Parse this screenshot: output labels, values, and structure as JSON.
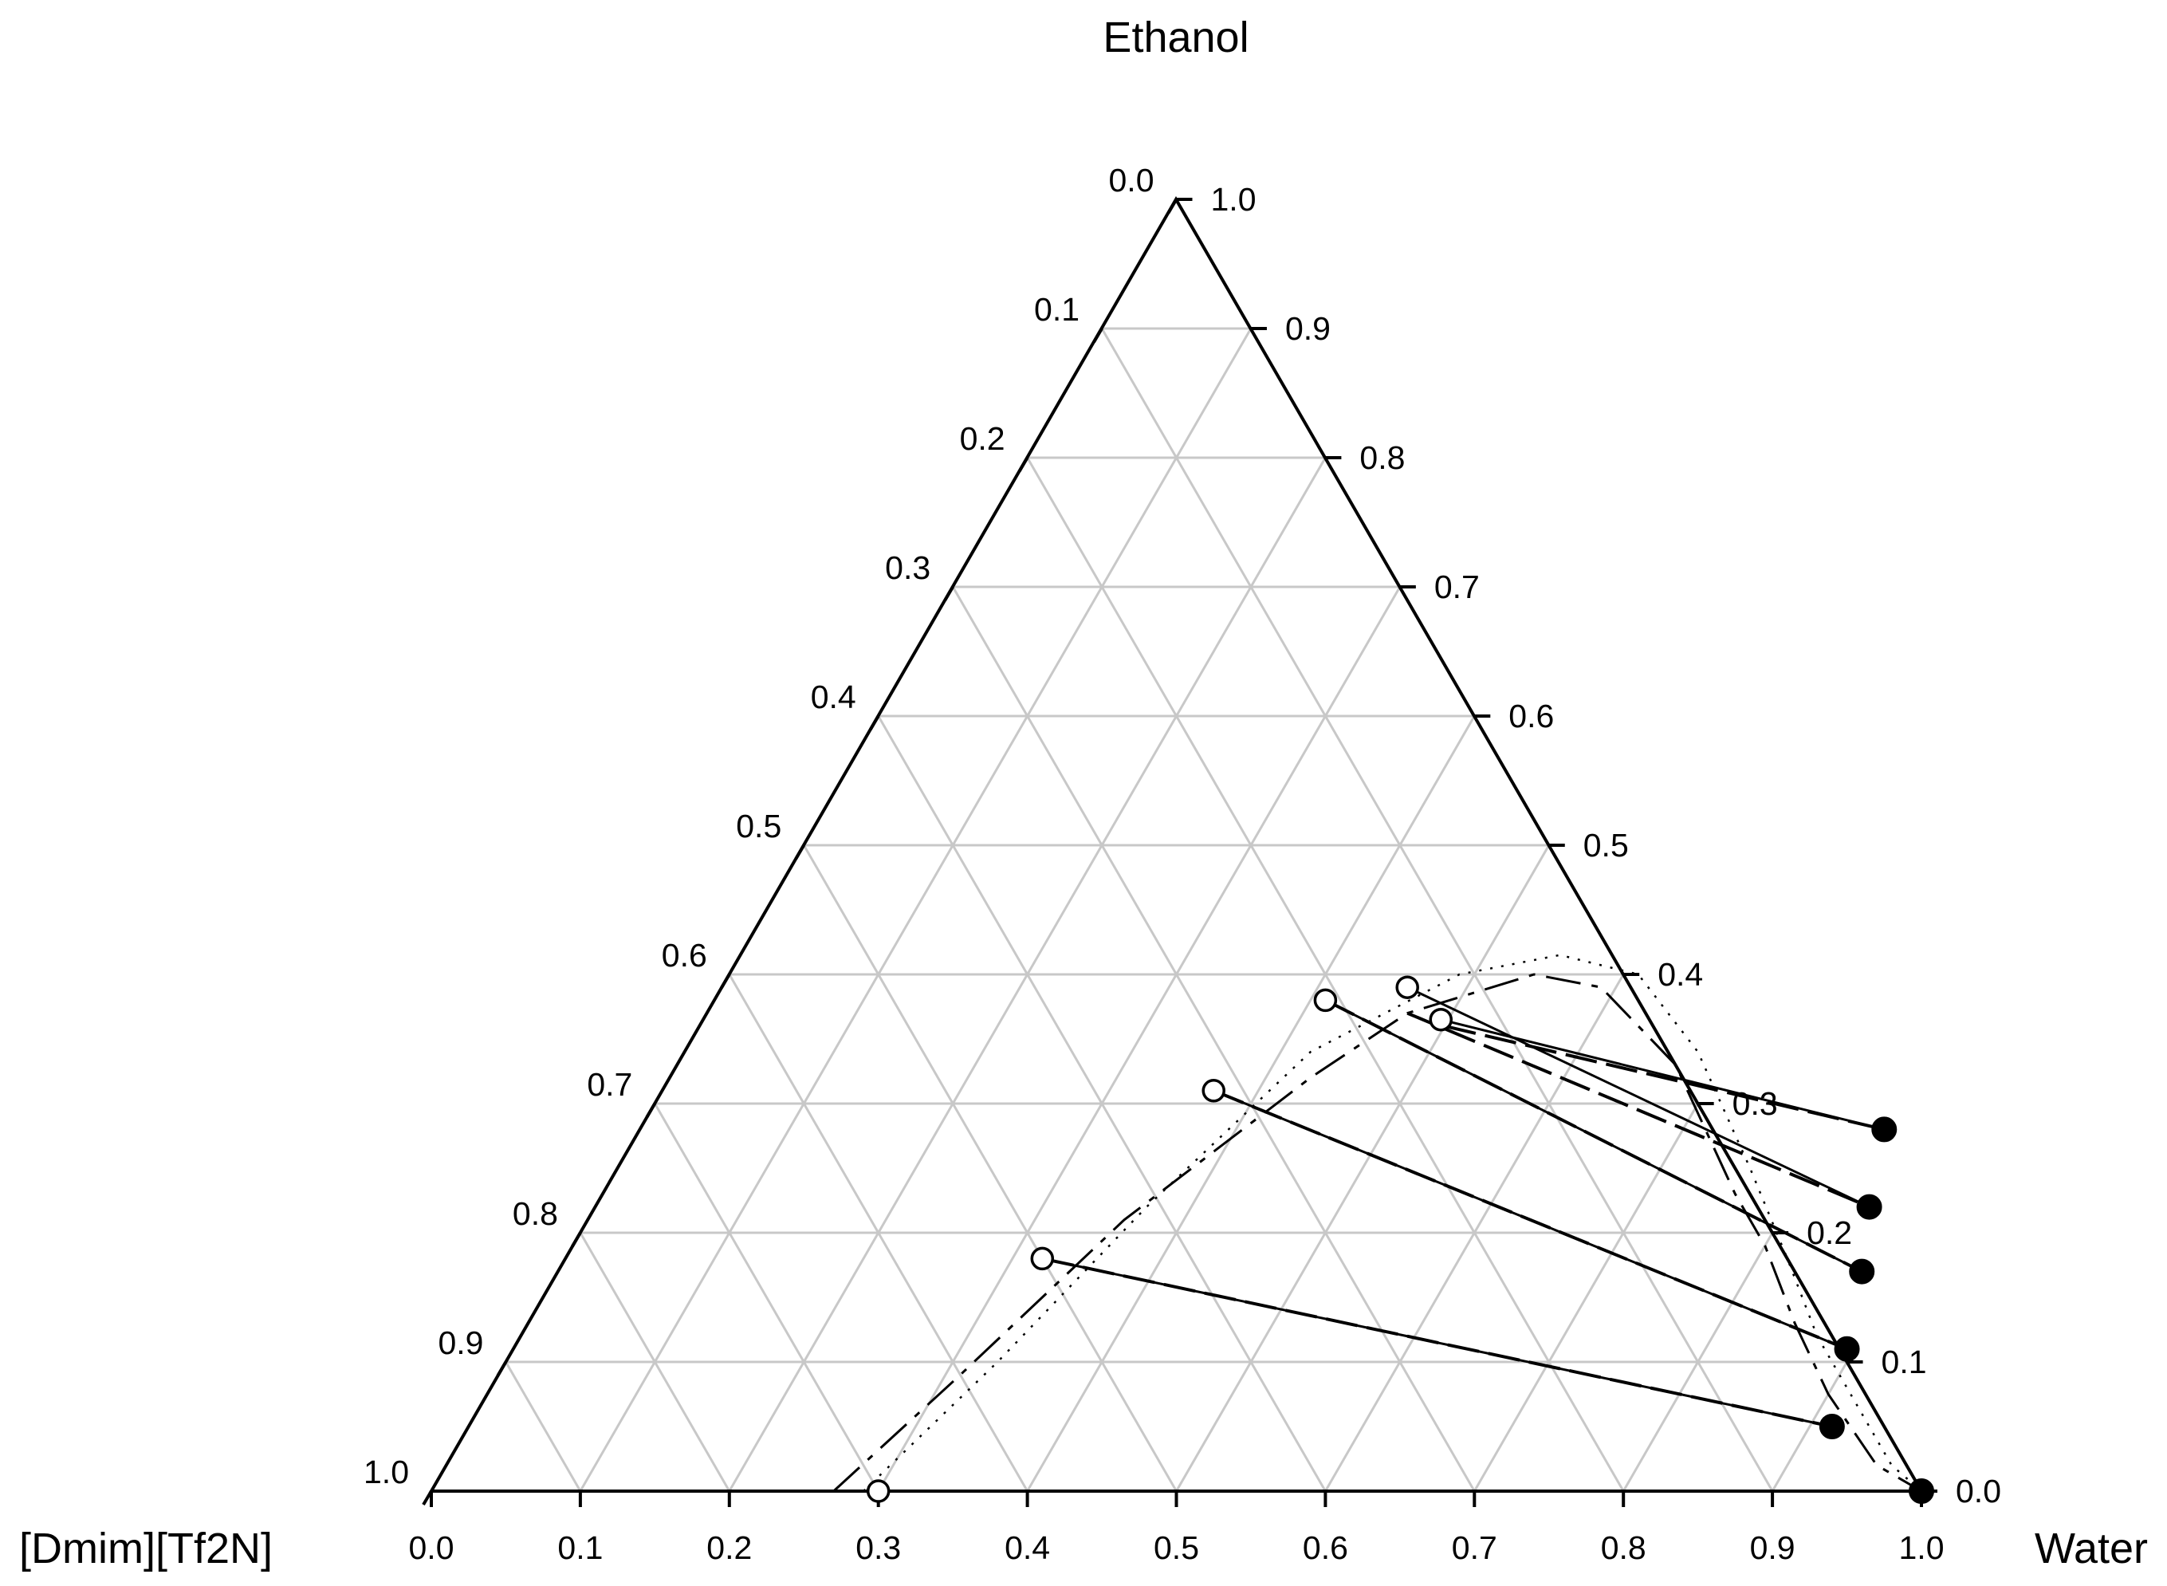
{
  "chart_data": {
    "type": "scatter",
    "subtype": "ternary",
    "vertex_labels": {
      "top": "Ethanol",
      "bottom_left": "[Dmim][Tf2N]",
      "bottom_right": "Water"
    },
    "ticks": {
      "bottom": [
        "0.0",
        "0.1",
        "0.2",
        "0.3",
        "0.4",
        "0.5",
        "0.6",
        "0.7",
        "0.8",
        "0.9",
        "1.0"
      ],
      "left": [
        "0.0",
        "0.1",
        "0.2",
        "0.3",
        "0.4",
        "0.5",
        "0.6",
        "0.7",
        "0.8",
        "0.9",
        "1.0"
      ],
      "right": [
        "1.0",
        "0.9",
        "0.8",
        "0.7",
        "0.6",
        "0.5",
        "0.4",
        "0.3",
        "0.2",
        "0.1",
        "0.0"
      ]
    },
    "grid": true,
    "tie_lines": [
      {
        "il_rich": {
          "water": 0.3,
          "ethanol": 0.0
        },
        "water_rich": {
          "water": 1.0,
          "ethanol": 0.0
        }
      },
      {
        "il_rich": {
          "water": 0.32,
          "ethanol": 0.18
        },
        "water_rich": {
          "water": 0.915,
          "ethanol": 0.05
        }
      },
      {
        "il_rich": {
          "water": 0.37,
          "ethanol": 0.31
        },
        "water_rich": {
          "water": 0.895,
          "ethanol": 0.11
        }
      },
      {
        "il_rich": {
          "water": 0.41,
          "ethanol": 0.38
        },
        "water_rich": {
          "water": 0.875,
          "ethanol": 0.17
        }
      },
      {
        "il_rich": {
          "water": 0.46,
          "ethanol": 0.39
        },
        "water_rich": {
          "water": 0.855,
          "ethanol": 0.22
        }
      },
      {
        "il_rich": {
          "water": 0.495,
          "ethanol": 0.365
        },
        "water_rich": {
          "water": 0.835,
          "ethanol": 0.28
        }
      }
    ],
    "series": [
      {
        "marker": "open-circle",
        "points": [
          [
            0.3,
            0.0
          ],
          [
            0.32,
            0.18
          ],
          [
            0.37,
            0.31
          ],
          [
            0.41,
            0.38
          ],
          [
            0.46,
            0.39
          ],
          [
            0.495,
            0.365
          ]
        ]
      },
      {
        "marker": "filled-circle",
        "points": [
          [
            1.0,
            0.0
          ],
          [
            0.915,
            0.05
          ],
          [
            0.895,
            0.11
          ],
          [
            0.875,
            0.17
          ],
          [
            0.855,
            0.22
          ],
          [
            0.835,
            0.28
          ]
        ]
      }
    ],
    "model_curves": [
      {
        "style": "dashed",
        "points": [
          [
            0.27,
            0.0
          ],
          [
            0.31,
            0.09
          ],
          [
            0.36,
            0.21
          ],
          [
            0.43,
            0.32
          ],
          [
            0.47,
            0.37
          ],
          [
            0.54,
            0.4
          ],
          [
            0.59,
            0.39
          ],
          [
            0.67,
            0.33
          ],
          [
            0.76,
            0.23
          ],
          [
            0.8,
            0.19
          ],
          [
            0.85,
            0.13
          ],
          [
            0.9,
            0.075
          ],
          [
            0.96,
            0.02
          ],
          [
            1.0,
            0.0
          ]
        ]
      },
      {
        "style": "dotted",
        "points": [
          [
            0.29,
            0.0
          ],
          [
            0.33,
            0.1
          ],
          [
            0.37,
            0.22
          ],
          [
            0.42,
            0.34
          ],
          [
            0.49,
            0.4
          ],
          [
            0.55,
            0.415
          ],
          [
            0.61,
            0.4
          ],
          [
            0.68,
            0.34
          ],
          [
            0.76,
            0.25
          ],
          [
            0.82,
            0.18
          ],
          [
            0.87,
            0.12
          ],
          [
            0.92,
            0.07
          ],
          [
            0.97,
            0.02
          ],
          [
            1.0,
            0.0
          ]
        ]
      }
    ],
    "model_tie_lines": [
      {
        "il_rich": {
          "water": 0.32,
          "ethanol": 0.18
        },
        "water_rich": {
          "water": 0.915,
          "ethanol": 0.05
        }
      },
      {
        "il_rich": {
          "water": 0.37,
          "ethanol": 0.31
        },
        "water_rich": {
          "water": 0.895,
          "ethanol": 0.11
        }
      },
      {
        "il_rich": {
          "water": 0.41,
          "ethanol": 0.38
        },
        "water_rich": {
          "water": 0.875,
          "ethanol": 0.17
        }
      },
      {
        "il_rich": {
          "water": 0.47,
          "ethanol": 0.37
        },
        "water_rich": {
          "water": 0.855,
          "ethanol": 0.22
        }
      },
      {
        "il_rich": {
          "water": 0.5,
          "ethanol": 0.36
        },
        "water_rich": {
          "water": 0.835,
          "ethanol": 0.28
        }
      }
    ]
  }
}
